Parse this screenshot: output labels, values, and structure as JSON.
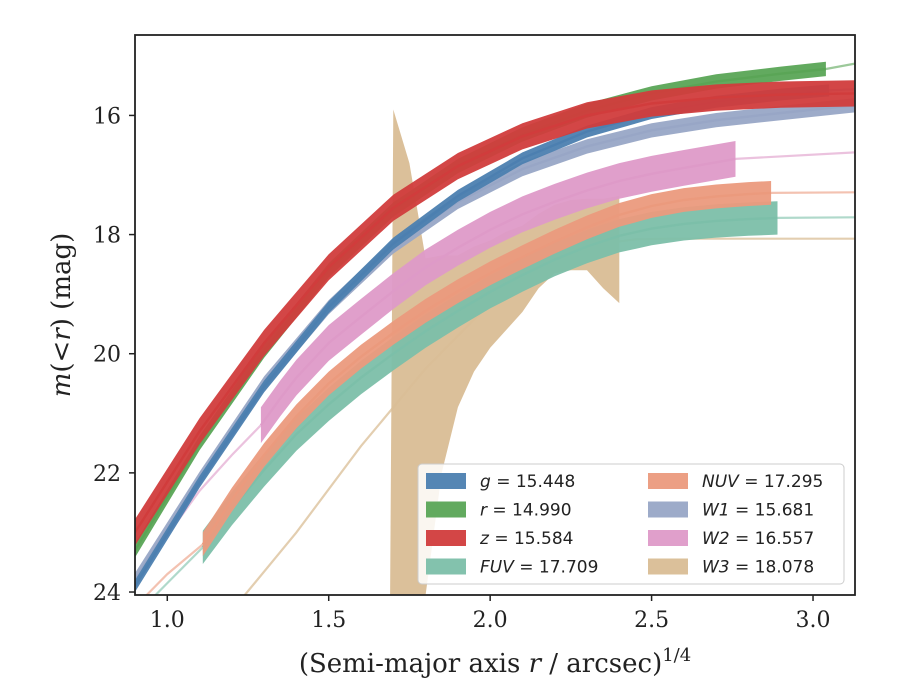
{
  "chart_data": {
    "type": "line",
    "xlabel": "(Semi-major axis r / arcsec)^1/4",
    "ylabel": "m(<r) (mag)",
    "xlim": [
      0.9,
      3.13
    ],
    "ylim": [
      24.05,
      14.65
    ],
    "y_inverted": true,
    "x_ticks": [
      "1.0",
      "1.5",
      "2.0",
      "2.5",
      "3.0"
    ],
    "y_ticks": [
      "16",
      "18",
      "20",
      "22",
      "24"
    ],
    "legend_position": "bottom-right",
    "grid": false,
    "series": [
      {
        "name": "g",
        "label": "g = 15.448",
        "color": "#4c7fb0",
        "band": 0.1,
        "x": [
          0.9,
          1.1,
          1.3,
          1.5,
          1.7,
          1.9,
          2.1,
          2.3,
          2.5,
          2.7,
          2.9,
          3.05
        ],
        "y": [
          23.9,
          22.15,
          20.55,
          19.22,
          18.15,
          17.35,
          16.72,
          16.27,
          15.96,
          15.77,
          15.65,
          15.58
        ],
        "ext_x": [
          3.05,
          3.13
        ],
        "ext_y": [
          15.58,
          15.56
        ]
      },
      {
        "name": "r",
        "label": "r = 14.990",
        "color": "#5aa556",
        "band": 0.12,
        "x": [
          0.9,
          1.1,
          1.3,
          1.5,
          1.7,
          1.9,
          2.1,
          2.3,
          2.5,
          2.7,
          2.9,
          3.04
        ],
        "y": [
          23.3,
          21.5,
          19.95,
          18.6,
          17.58,
          16.85,
          16.32,
          15.92,
          15.63,
          15.43,
          15.3,
          15.22
        ],
        "ext_x": [
          3.04,
          3.13
        ],
        "ext_y": [
          15.22,
          15.13
        ]
      },
      {
        "name": "z",
        "label": "z = 15.584",
        "color": "#d13c3c",
        "band": 0.22,
        "x": [
          0.9,
          1.1,
          1.3,
          1.5,
          1.7,
          1.9,
          2.1,
          2.3,
          2.5,
          2.7,
          2.9,
          3.13
        ],
        "y": [
          23.0,
          21.3,
          19.82,
          18.55,
          17.55,
          16.85,
          16.35,
          16.0,
          15.8,
          15.7,
          15.65,
          15.63
        ],
        "ext_x": [],
        "ext_y": []
      },
      {
        "name": "FUV",
        "label": "FUV = 17.709",
        "color": "#7cbfa9",
        "band": 0.28,
        "x": [
          1.11,
          1.2,
          1.3,
          1.4,
          1.5,
          1.6,
          1.7,
          1.8,
          1.9,
          2.0,
          2.1,
          2.2,
          2.3,
          2.4,
          2.5,
          2.6,
          2.7,
          2.8,
          2.89
        ],
        "y": [
          23.25,
          22.6,
          21.95,
          21.35,
          20.85,
          20.4,
          20.0,
          19.62,
          19.28,
          18.96,
          18.68,
          18.42,
          18.2,
          18.02,
          17.9,
          17.82,
          17.77,
          17.74,
          17.72
        ],
        "ext_x": [
          0.9,
          1.0,
          1.11
        ],
        "ext_y": [
          24.4,
          23.85,
          23.25
        ],
        "ext2_x": [
          2.89,
          3.13
        ],
        "ext2_y": [
          17.72,
          17.71
        ]
      },
      {
        "name": "NUV",
        "label": "NUV = 17.295",
        "color": "#eb9a7d",
        "band": 0.2,
        "x": [
          1.11,
          1.2,
          1.3,
          1.4,
          1.5,
          1.6,
          1.7,
          1.8,
          1.9,
          2.0,
          2.1,
          2.2,
          2.3,
          2.4,
          2.5,
          2.6,
          2.7,
          2.8,
          2.87
        ],
        "y": [
          23.2,
          22.45,
          21.7,
          21.05,
          20.5,
          20.05,
          19.65,
          19.28,
          18.95,
          18.65,
          18.38,
          18.12,
          17.88,
          17.67,
          17.52,
          17.42,
          17.36,
          17.32,
          17.3
        ],
        "ext_x": [
          0.9,
          1.0,
          1.11
        ],
        "ext_y": [
          24.25,
          23.7,
          23.2
        ],
        "ext2_x": [
          2.87,
          3.13
        ],
        "ext2_y": [
          17.3,
          17.29
        ]
      },
      {
        "name": "W1",
        "label": "W1 = 15.681",
        "color": "#98a6c6",
        "band": 0.12,
        "x": [
          0.9,
          1.1,
          1.3,
          1.5,
          1.7,
          1.9,
          2.1,
          2.3,
          2.5,
          2.7,
          2.9,
          3.13
        ],
        "y": [
          23.8,
          22.1,
          20.5,
          19.22,
          18.2,
          17.45,
          16.9,
          16.52,
          16.25,
          16.08,
          15.96,
          15.83
        ],
        "ext_x": [],
        "ext_y": []
      },
      {
        "name": "W2",
        "label": "W2 = 16.557",
        "color": "#de9ac8",
        "band": 0.3,
        "x": [
          1.29,
          1.35,
          1.4,
          1.5,
          1.6,
          1.7,
          1.8,
          1.9,
          2.0,
          2.1,
          2.2,
          2.3,
          2.4,
          2.5,
          2.6,
          2.76
        ],
        "y": [
          21.2,
          20.75,
          20.4,
          19.82,
          19.38,
          18.95,
          18.55,
          18.22,
          17.92,
          17.66,
          17.45,
          17.26,
          17.1,
          16.98,
          16.88,
          16.73
        ],
        "ext_x": [
          0.9,
          1.0,
          1.1,
          1.2,
          1.29
        ],
        "ext_y": [
          23.9,
          23.05,
          22.3,
          21.7,
          21.2
        ],
        "ext2_x": [
          2.76,
          3.13
        ],
        "ext2_y": [
          16.73,
          16.62
        ]
      },
      {
        "name": "W3",
        "label": "W3 = 18.078",
        "color": "#d9bd95",
        "band_upper_x": [
          1.69,
          1.7,
          1.75,
          1.8,
          1.85,
          1.9,
          1.95,
          2.0,
          2.05,
          2.1,
          2.15,
          2.2,
          2.25,
          2.3,
          2.35,
          2.4
        ],
        "band_upper_y": [
          24.05,
          15.9,
          16.8,
          18.4,
          18.35,
          18.35,
          18.2,
          18.1,
          17.95,
          17.85,
          17.65,
          17.5,
          17.42,
          17.4,
          17.4,
          17.35
        ],
        "band_lower_x": [
          1.69,
          1.7,
          1.75,
          1.8,
          1.85,
          1.9,
          1.95,
          2.0,
          2.05,
          2.1,
          2.15,
          2.2,
          2.25,
          2.3,
          2.35,
          2.4
        ],
        "band_lower_y": [
          24.05,
          24.05,
          24.05,
          24.05,
          22.0,
          20.9,
          20.3,
          19.9,
          19.6,
          19.3,
          18.9,
          18.65,
          18.6,
          18.6,
          18.9,
          19.15
        ],
        "ext_x": [
          1.24,
          1.4,
          1.6,
          1.8,
          2.0,
          2.2,
          2.35,
          2.45,
          2.55,
          2.7,
          2.9,
          3.13
        ],
        "ext_y": [
          24.05,
          23.0,
          21.55,
          20.25,
          19.15,
          18.45,
          18.15,
          18.08,
          18.07,
          18.07,
          18.07,
          18.07
        ]
      }
    ]
  },
  "legend": [
    {
      "symbol": "g",
      "value": "= 15.448"
    },
    {
      "symbol": "r",
      "value": "= 14.990"
    },
    {
      "symbol": "z",
      "value": "= 15.584"
    },
    {
      "symbol": "FUV",
      "value": "= 17.709"
    },
    {
      "symbol": "NUV",
      "value": "= 17.295"
    },
    {
      "symbol": "W1",
      "value": "= 15.681"
    },
    {
      "symbol": "W2",
      "value": "= 16.557"
    },
    {
      "symbol": "W3",
      "value": "= 18.078"
    }
  ],
  "labels": {
    "xlabel_main": "(Semi-major axis ",
    "xlabel_var": "r",
    "xlabel_rest": " / arcsec)",
    "xlabel_exp": "1/4",
    "ylabel_main": "m",
    "ylabel_mid": "(<",
    "ylabel_var": "r",
    "ylabel_rest": ") (mag)"
  }
}
